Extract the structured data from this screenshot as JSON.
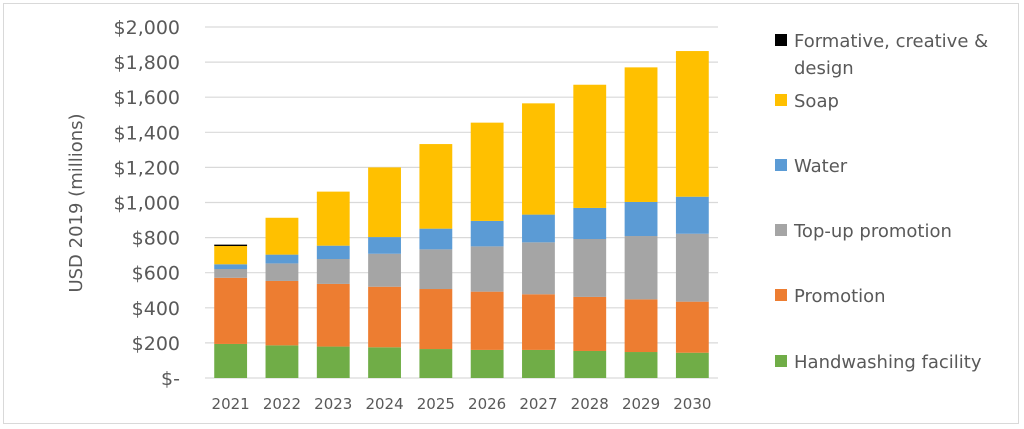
{
  "chart_data": {
    "type": "bar",
    "stacked": true,
    "title": "",
    "xlabel": "",
    "ylabel": "USD 2019 (millions)",
    "ylim": [
      0,
      2000
    ],
    "yticks": [
      0,
      200,
      400,
      600,
      800,
      1000,
      1200,
      1400,
      1600,
      1800,
      2000
    ],
    "ytick_labels": [
      "$-",
      "$200",
      "$400",
      "$600",
      "$800",
      "$1,000",
      "$1,200",
      "$1,400",
      "$1,600",
      "$1,800",
      "$2,000"
    ],
    "grid": true,
    "legend_position": "right",
    "categories": [
      "2021",
      "2022",
      "2023",
      "2024",
      "2025",
      "2026",
      "2027",
      "2028",
      "2029",
      "2030"
    ],
    "series": [
      {
        "name": "Handwashing facility",
        "color": "#70ad47",
        "values": [
          194,
          186,
          179,
          175,
          165,
          160,
          160,
          154,
          148,
          144
        ]
      },
      {
        "name": "Promotion",
        "color": "#ed7d31",
        "values": [
          377,
          367,
          357,
          345,
          342,
          332,
          317,
          308,
          300,
          291
        ]
      },
      {
        "name": "Top-up promotion",
        "color": "#a5a5a5",
        "values": [
          50,
          100,
          142,
          188,
          226,
          258,
          296,
          330,
          361,
          387
        ]
      },
      {
        "name": "Water",
        "color": "#5b9bd5",
        "values": [
          27,
          50,
          76,
          95,
          118,
          145,
          158,
          177,
          194,
          211
        ]
      },
      {
        "name": "Soap",
        "color": "#ffc000",
        "values": [
          104,
          210,
          308,
          397,
          482,
          560,
          634,
          702,
          767,
          830
        ]
      },
      {
        "name": "Formative, creative & design",
        "color": "#000000",
        "values": [
          8,
          0,
          0,
          0,
          0,
          0,
          0,
          0,
          0,
          0
        ]
      }
    ],
    "legend_order": [
      "Formative, creative & design",
      "Soap",
      "Water",
      "Top-up promotion",
      "Promotion",
      "Handwashing facility"
    ],
    "legend_lines": {
      "Formative, creative & design": [
        "Formative, creative &",
        "design"
      ]
    }
  }
}
